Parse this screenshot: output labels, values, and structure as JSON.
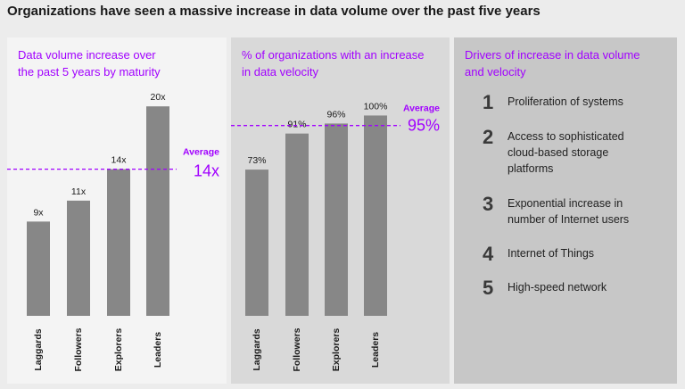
{
  "page": {
    "title": "Organizations have seen a massive increase in data volume over the past five years"
  },
  "panel1": {
    "heading_line1": "Data volume increase over",
    "heading_line2": "the past 5 years by maturity"
  },
  "panel2": {
    "heading_line1": "% of organizations with an increase",
    "heading_line2": "in data velocity"
  },
  "panel3": {
    "heading_line1": "Drivers of increase in data volume",
    "heading_line2": "and velocity",
    "drivers": [
      {
        "number": "1",
        "lines": [
          "Proliferation of systems"
        ]
      },
      {
        "number": "2",
        "lines": [
          "Access to sophisticated",
          "cloud-based storage",
          "platforms"
        ]
      },
      {
        "number": "3",
        "lines": [
          "Exponential increase in",
          "number of Internet users"
        ]
      },
      {
        "number": "4",
        "lines": [
          "Internet of Things"
        ]
      },
      {
        "number": "5",
        "lines": [
          "High-speed network"
        ]
      }
    ]
  },
  "colors": {
    "accent": "#a100ff",
    "bar": "#878787",
    "text": "#1a1a1a"
  },
  "chart_data": [
    {
      "type": "bar",
      "title": "Data volume increase over the past 5 years by maturity",
      "categories": [
        "Laggards",
        "Followers",
        "Explorers",
        "Leaders"
      ],
      "values": [
        9,
        11,
        14,
        20
      ],
      "value_labels": [
        "9x",
        "11x",
        "14x",
        "20x"
      ],
      "ylim": [
        0,
        23
      ],
      "average": {
        "value": 14,
        "label": "Average",
        "value_label": "14x"
      },
      "xlabel": "",
      "ylabel": ""
    },
    {
      "type": "bar",
      "title": "% of organizations with an increase in data velocity",
      "categories": [
        "Laggards",
        "Followers",
        "Explorers",
        "Leaders"
      ],
      "values": [
        73,
        91,
        96,
        100
      ],
      "value_labels": [
        "73%",
        "91%",
        "96%",
        "100%"
      ],
      "ylim": [
        0,
        110
      ],
      "average": {
        "value": 95,
        "label": "Average",
        "value_label": "95%"
      },
      "xlabel": "",
      "ylabel": ""
    }
  ]
}
